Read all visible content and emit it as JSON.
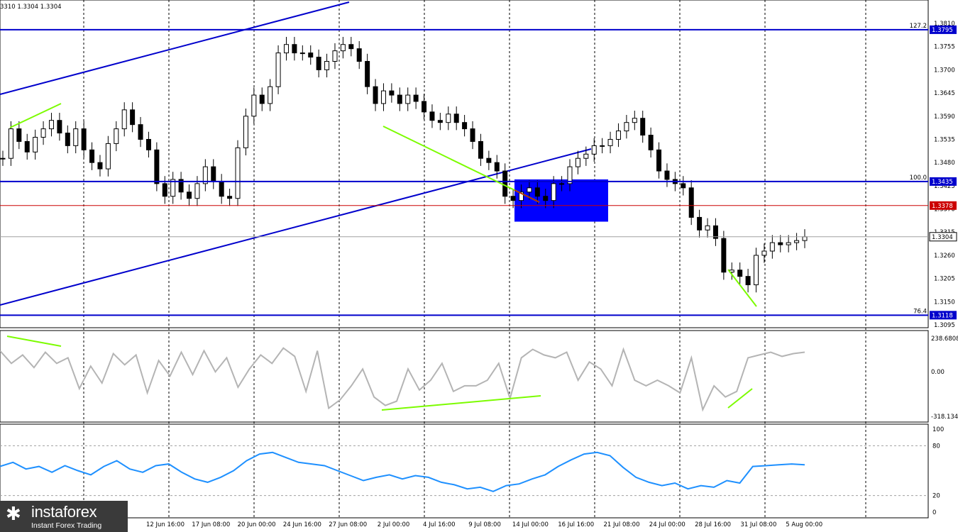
{
  "header": {
    "text": "3310 1.3304 1.3304"
  },
  "logo": {
    "icon": "instaforex-logo-icon",
    "mark": "✱",
    "name": "instaforex",
    "tagline": "Instant Forex Trading"
  },
  "colors": {
    "background": "#ffffff",
    "candle": "#000000",
    "level": "#0000cc",
    "tag": "#0000cc",
    "resistance": "#cc0000",
    "divergence": "#7cfc00",
    "cci": "#b4b4b4",
    "rsi": "#1e90ff",
    "grid": "#000000",
    "box": "#0000ff"
  },
  "chart_data": [
    {
      "type": "line",
      "panel": "price",
      "ylim": [
        1.3095,
        1.381
      ],
      "y_ticks": [
        "1.3810",
        "1.3755",
        "1.3700",
        "1.3645",
        "1.3590",
        "1.3535",
        "1.3480",
        "1.3425",
        "1.3370",
        "1.3315",
        "1.3260",
        "1.3205",
        "1.3150",
        "1.3095"
      ],
      "x_ticks": [
        "12 Jun 16:00",
        "17 Jun 08:00",
        "20 Jun 00:00",
        "24 Jun 16:00",
        "27 Jun 08:00",
        "2 Jul 00:00",
        "4 Jul 16:00",
        "9 Jul 08:00",
        "14 Jul 00:00",
        "16 Jul 16:00",
        "21 Jul 08:00",
        "24 Jul 00:00",
        "28 Jul 16:00",
        "31 Jul 08:00",
        "5 Aug 00:00"
      ],
      "bars": [
        1.349,
        1.356,
        1.353,
        1.3505,
        1.354,
        1.356,
        1.358,
        1.355,
        1.352,
        1.356,
        1.351,
        1.348,
        1.3465,
        1.3525,
        1.356,
        1.3605,
        1.357,
        1.3535,
        1.351,
        1.343,
        1.34,
        1.344,
        1.341,
        1.3395,
        1.343,
        1.347,
        1.3435,
        1.34,
        1.3395,
        1.3515,
        1.359,
        1.364,
        1.362,
        1.366,
        1.374,
        1.376,
        1.374,
        1.374,
        1.373,
        1.37,
        1.372,
        1.3745,
        1.376,
        1.375,
        1.372,
        1.366,
        1.362,
        1.365,
        1.364,
        1.362,
        1.364,
        1.3625,
        1.36,
        1.358,
        1.3575,
        1.3595,
        1.3575,
        1.356,
        1.353,
        1.349,
        1.348,
        1.346,
        1.34,
        1.339,
        1.341,
        1.342,
        1.34,
        1.339,
        1.343,
        1.343,
        1.347,
        1.349,
        1.35,
        1.352,
        1.352,
        1.3535,
        1.3555,
        1.3575,
        1.3585,
        1.3545,
        1.351,
        1.346,
        1.344,
        1.343,
        1.342,
        1.335,
        1.332,
        1.333,
        1.33,
        1.322,
        1.3225,
        1.321,
        1.319,
        1.326,
        1.327,
        1.329,
        1.3285,
        1.329,
        1.3295,
        1.3304
      ],
      "levels": [
        {
          "label": "127.2",
          "value": "1.3795"
        },
        {
          "label": "100.0",
          "value": "1.3435"
        },
        {
          "label": "",
          "value": "1.3378"
        },
        {
          "label": "",
          "value": "1.3304"
        },
        {
          "label": "76.4",
          "value": "1.3118"
        }
      ]
    },
    {
      "type": "line",
      "panel": "cci",
      "ylim": [
        -318.134,
        238.6808
      ],
      "y_ticks": [
        "238.6808",
        "0.00",
        "-318.134"
      ],
      "values": [
        150,
        60,
        120,
        30,
        140,
        60,
        100,
        -120,
        40,
        -80,
        130,
        50,
        120,
        -150,
        80,
        -30,
        140,
        -20,
        150,
        0,
        100,
        -110,
        20,
        120,
        60,
        170,
        110,
        -140,
        150,
        -260,
        -200,
        -100,
        20,
        -180,
        -240,
        -210,
        20,
        -130,
        -60,
        60,
        -140,
        -100,
        -100,
        -60,
        60,
        -190,
        100,
        160,
        120,
        100,
        140,
        -60,
        70,
        20,
        -100,
        160,
        -60,
        -100,
        -60,
        -100,
        -150,
        100,
        -270,
        -100,
        -180,
        -140,
        100,
        120,
        140,
        110,
        130,
        140
      ],
      "divergence_lines": 4
    },
    {
      "type": "line",
      "panel": "rsi",
      "ylim": [
        0,
        100
      ],
      "y_ticks": [
        "100",
        "80",
        "20",
        "0"
      ],
      "values": [
        55,
        60,
        52,
        55,
        48,
        56,
        50,
        45,
        55,
        62,
        52,
        48,
        56,
        58,
        48,
        40,
        36,
        42,
        50,
        62,
        70,
        72,
        66,
        60,
        58,
        56,
        50,
        44,
        38,
        42,
        45,
        40,
        44,
        42,
        36,
        33,
        28,
        30,
        25,
        32,
        34,
        40,
        45,
        55,
        63,
        70,
        72,
        68,
        54,
        42,
        36,
        32,
        35,
        28,
        32,
        30,
        38,
        35,
        55,
        56,
        57,
        58,
        57
      ]
    }
  ]
}
